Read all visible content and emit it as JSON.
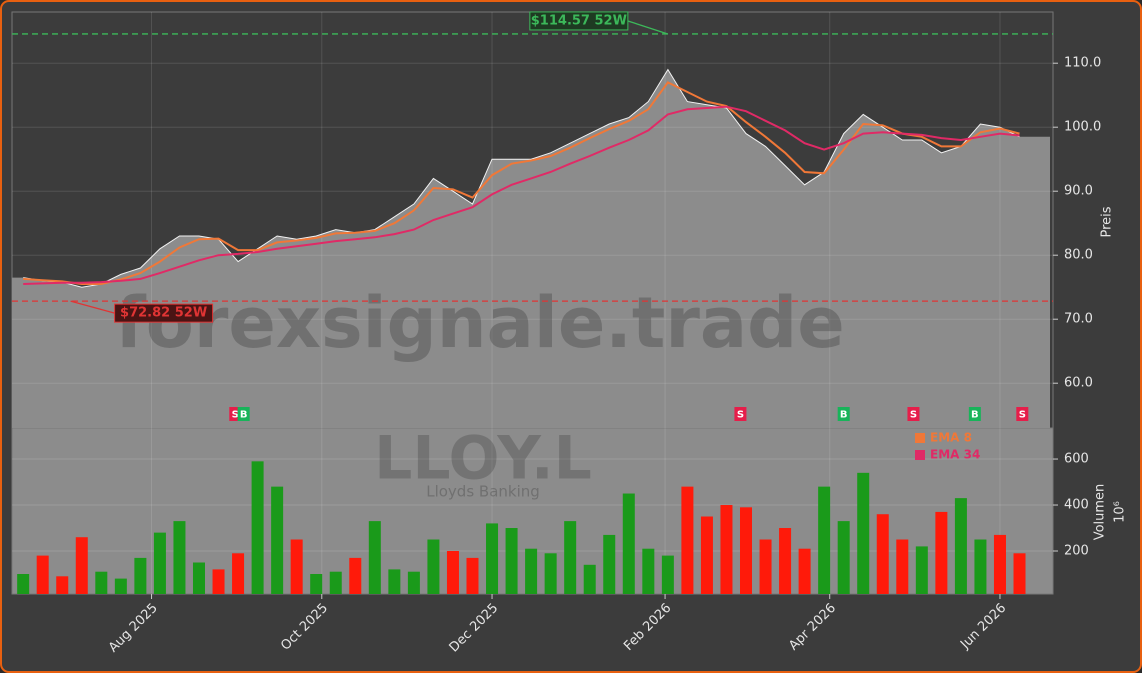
{
  "chart_data": [
    {
      "type": "area",
      "x": [
        "2025-06-16",
        "2025-06-23",
        "2025-06-30",
        "2025-07-07",
        "2025-07-14",
        "2025-07-21",
        "2025-07-28",
        "2025-08-04",
        "2025-08-11",
        "2025-08-18",
        "2025-08-25",
        "2025-09-01",
        "2025-09-08",
        "2025-09-15",
        "2025-09-22",
        "2025-09-29",
        "2025-10-06",
        "2025-10-13",
        "2025-10-20",
        "2025-10-27",
        "2025-11-03",
        "2025-11-10",
        "2025-11-17",
        "2025-11-24",
        "2025-12-01",
        "2025-12-08",
        "2025-12-15",
        "2025-12-22",
        "2025-12-29",
        "2026-01-05",
        "2026-01-12",
        "2026-01-19",
        "2026-01-26",
        "2026-02-02",
        "2026-02-09",
        "2026-02-16",
        "2026-02-23",
        "2026-03-02",
        "2026-03-09",
        "2026-03-16",
        "2026-03-23",
        "2026-03-30",
        "2026-04-06",
        "2026-04-13",
        "2026-04-20",
        "2026-04-27",
        "2026-05-04",
        "2026-05-11",
        "2026-05-18",
        "2026-05-25",
        "2026-06-01",
        "2026-06-08"
      ],
      "values": [
        76.5,
        76,
        75.8,
        75,
        75.5,
        77,
        78,
        81,
        83,
        83,
        82.5,
        79,
        81,
        83,
        82.5,
        83,
        84,
        83.5,
        84,
        86,
        88,
        92,
        90,
        88,
        95,
        95,
        95,
        96,
        97.5,
        99,
        100.5,
        101.5,
        104,
        109,
        104,
        103.5,
        103,
        99,
        97,
        94,
        91,
        93,
        99,
        102,
        100,
        98,
        98,
        96,
        97,
        100.5,
        100,
        98.5
      ],
      "color": "#8c8c8c",
      "series": [
        {
          "name": "EMA 8",
          "color": "#f07838",
          "values": [
            76.3,
            76.1,
            75.9,
            75.5,
            75.5,
            76.2,
            77.2,
            79,
            81.2,
            82.5,
            82.6,
            80.8,
            80.8,
            82,
            82.3,
            82.7,
            83.4,
            83.5,
            83.8,
            85,
            87,
            90.5,
            90.3,
            89,
            92.5,
            94.3,
            94.8,
            95.5,
            96.8,
            98.3,
            99.7,
            101,
            102.8,
            107,
            105.5,
            104,
            103.3,
            100.8,
            98.5,
            96,
            93,
            92.8,
            96.5,
            100.5,
            100.3,
            99,
            98.5,
            97,
            97,
            99.2,
            99.8,
            99
          ]
        },
        {
          "name": "EMA 34",
          "color": "#e02a66",
          "values": [
            75.5,
            75.6,
            75.7,
            75.7,
            75.8,
            76,
            76.3,
            77.2,
            78.2,
            79.2,
            80,
            80.2,
            80.5,
            81,
            81.4,
            81.8,
            82.2,
            82.5,
            82.8,
            83.3,
            84,
            85.5,
            86.5,
            87.5,
            89.5,
            91,
            92,
            93,
            94.3,
            95.5,
            96.8,
            98,
            99.5,
            102,
            102.8,
            103,
            103.2,
            102.5,
            101,
            99.5,
            97.5,
            96.5,
            97.5,
            99,
            99.2,
            99,
            98.8,
            98.3,
            98,
            98.5,
            99,
            98.7
          ]
        }
      ],
      "xlim": [
        "2025-06-12",
        "2026-06-20"
      ],
      "xticks": [
        {
          "value": "2025-08-01",
          "label": "Aug 2025"
        },
        {
          "value": "2025-10-01",
          "label": "Oct 2025"
        },
        {
          "value": "2025-12-01",
          "label": "Dec 2025"
        },
        {
          "value": "2026-02-01",
          "label": "Feb 2026"
        },
        {
          "value": "2026-04-01",
          "label": "Apr 2026"
        },
        {
          "value": "2026-06-01",
          "label": "Jun 2026"
        }
      ],
      "ylim": [
        53,
        118
      ],
      "yticks": [
        {
          "value": 60,
          "label": "60.0"
        },
        {
          "value": 70,
          "label": "70.0"
        },
        {
          "value": 80,
          "label": "80.0"
        },
        {
          "value": 90,
          "label": "90.0"
        },
        {
          "value": 100,
          "label": "100.0"
        },
        {
          "value": 110,
          "label": "110.0"
        }
      ],
      "ylabel": "Preis",
      "grid": true,
      "annotations": [
        {
          "text": "$114.57 52W",
          "date": "2026-02-02",
          "value": 114.57,
          "color": "#3cb85a"
        },
        {
          "text": "$72.82 52W",
          "date": "2025-07-03",
          "value": 72.82,
          "color": "#e03434"
        }
      ],
      "signals": [
        {
          "date": "2025-08-31",
          "label": "S"
        },
        {
          "date": "2025-09-03",
          "label": "B"
        },
        {
          "date": "2026-02-28",
          "label": "S"
        },
        {
          "date": "2026-04-06",
          "label": "B"
        },
        {
          "date": "2026-05-01",
          "label": "S"
        },
        {
          "date": "2026-05-23",
          "label": "B"
        },
        {
          "date": "2026-06-09",
          "label": "S"
        }
      ],
      "signal_colors": {
        "B": "#18b45a",
        "S": "#e61e4a"
      },
      "watermark": "forexsignale.trade"
    },
    {
      "type": "bar",
      "values": [
        100,
        180,
        90,
        260,
        110,
        80,
        170,
        280,
        330,
        150,
        120,
        190,
        590,
        480,
        250,
        100,
        110,
        170,
        330,
        120,
        110,
        250,
        200,
        170,
        320,
        300,
        210,
        190,
        330,
        140,
        270,
        450,
        210,
        180,
        480,
        350,
        400,
        390,
        250,
        300,
        210,
        480,
        330,
        540,
        360,
        250,
        220,
        370,
        430,
        250,
        270,
        190
      ],
      "up_color": "#1a9a1a",
      "down_color": "#ff1a0a",
      "ylim": [
        13,
        735
      ],
      "yticks": [
        200,
        400,
        600
      ],
      "ylabel": "Volumen",
      "unit_label": "10⁶",
      "symbol": "LLOY.L",
      "company": "Lloyds Banking"
    }
  ]
}
